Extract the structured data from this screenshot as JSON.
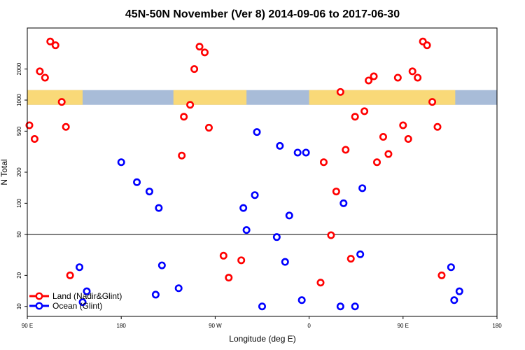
{
  "chart_data": {
    "type": "scatter",
    "title": "45N-50N November (Ver 8)   2014-09-06 to 2017-06-30",
    "xlabel": "Longitude (deg E)",
    "ylabel": "N Total",
    "x_scale": "longitude, 90E to 180 wrapping eastward",
    "y_scale": "log",
    "xlim": [
      90,
      540
    ],
    "ylim": [
      8,
      5000
    ],
    "x_ticks": [
      {
        "value": 90,
        "label": "90 E"
      },
      {
        "value": 180,
        "label": "180"
      },
      {
        "value": 270,
        "label": "90 W"
      },
      {
        "value": 360,
        "label": "0"
      },
      {
        "value": 450,
        "label": "90 E"
      },
      {
        "value": 540,
        "label": "180"
      }
    ],
    "y_ticks": [
      {
        "value": 10,
        "label": "10"
      },
      {
        "value": 20,
        "label": "20"
      },
      {
        "value": 50,
        "label": "50"
      },
      {
        "value": 100,
        "label": "100"
      },
      {
        "value": 200,
        "label": "200"
      },
      {
        "value": 500,
        "label": "500"
      },
      {
        "value": 1000,
        "label": "1000"
      },
      {
        "value": 2000,
        "label": "2000"
      }
    ],
    "reference_line": 50,
    "landmask_band": {
      "y_low": 900,
      "y_high": 1250,
      "land_color": "#f9d978",
      "ocean_color": "#a8bcd8"
    },
    "land_segments": [
      [
        90,
        143
      ],
      [
        230,
        300
      ],
      [
        360,
        500
      ]
    ],
    "legend_position": "bottom-left",
    "series": [
      {
        "name": "Land (Nadir&Glint)",
        "color": "#ff0000",
        "points": [
          [
            92,
            570
          ],
          [
            97,
            420
          ],
          [
            102,
            1900
          ],
          [
            107,
            1650
          ],
          [
            112,
            3700
          ],
          [
            117,
            3400
          ],
          [
            123,
            960
          ],
          [
            127,
            550
          ],
          [
            131,
            20
          ],
          [
            238,
            290
          ],
          [
            240,
            690
          ],
          [
            246,
            900
          ],
          [
            250,
            2000
          ],
          [
            255,
            3300
          ],
          [
            260,
            2900
          ],
          [
            264,
            540
          ],
          [
            278,
            31
          ],
          [
            283,
            19
          ],
          [
            295,
            28
          ],
          [
            371,
            17
          ],
          [
            374,
            250
          ],
          [
            381,
            49
          ],
          [
            386,
            130
          ],
          [
            390,
            1200
          ],
          [
            395,
            330
          ],
          [
            400,
            29
          ],
          [
            404,
            690
          ],
          [
            413,
            780
          ],
          [
            417,
            1550
          ],
          [
            422,
            1700
          ],
          [
            425,
            250
          ],
          [
            431,
            440
          ],
          [
            436,
            300
          ],
          [
            445,
            1650
          ],
          [
            450,
            570
          ],
          [
            455,
            420
          ],
          [
            459,
            1900
          ],
          [
            464,
            1650
          ],
          [
            469,
            3700
          ],
          [
            473,
            3400
          ],
          [
            478,
            960
          ],
          [
            483,
            550
          ],
          [
            487,
            20
          ]
        ]
      },
      {
        "name": "Ocean (Glint)",
        "color": "#0000ff",
        "points": [
          [
            140,
            24
          ],
          [
            143,
            11
          ],
          [
            147,
            14
          ],
          [
            180,
            250
          ],
          [
            195,
            160
          ],
          [
            207,
            130
          ],
          [
            213,
            13
          ],
          [
            216,
            90
          ],
          [
            219,
            25
          ],
          [
            235,
            15
          ],
          [
            297,
            90
          ],
          [
            300,
            55
          ],
          [
            308,
            120
          ],
          [
            310,
            490
          ],
          [
            315,
            10
          ],
          [
            329,
            47
          ],
          [
            332,
            360
          ],
          [
            337,
            27
          ],
          [
            341,
            76
          ],
          [
            349,
            310
          ],
          [
            353,
            11.5
          ],
          [
            357,
            310
          ],
          [
            390,
            10
          ],
          [
            393,
            100
          ],
          [
            404,
            10
          ],
          [
            409,
            32
          ],
          [
            411,
            140
          ],
          [
            496,
            24
          ],
          [
            499,
            11.5
          ],
          [
            504,
            14
          ]
        ]
      }
    ]
  },
  "colors": {
    "land": "#ff0000",
    "ocean": "#0000ff",
    "axis": "#000000"
  }
}
